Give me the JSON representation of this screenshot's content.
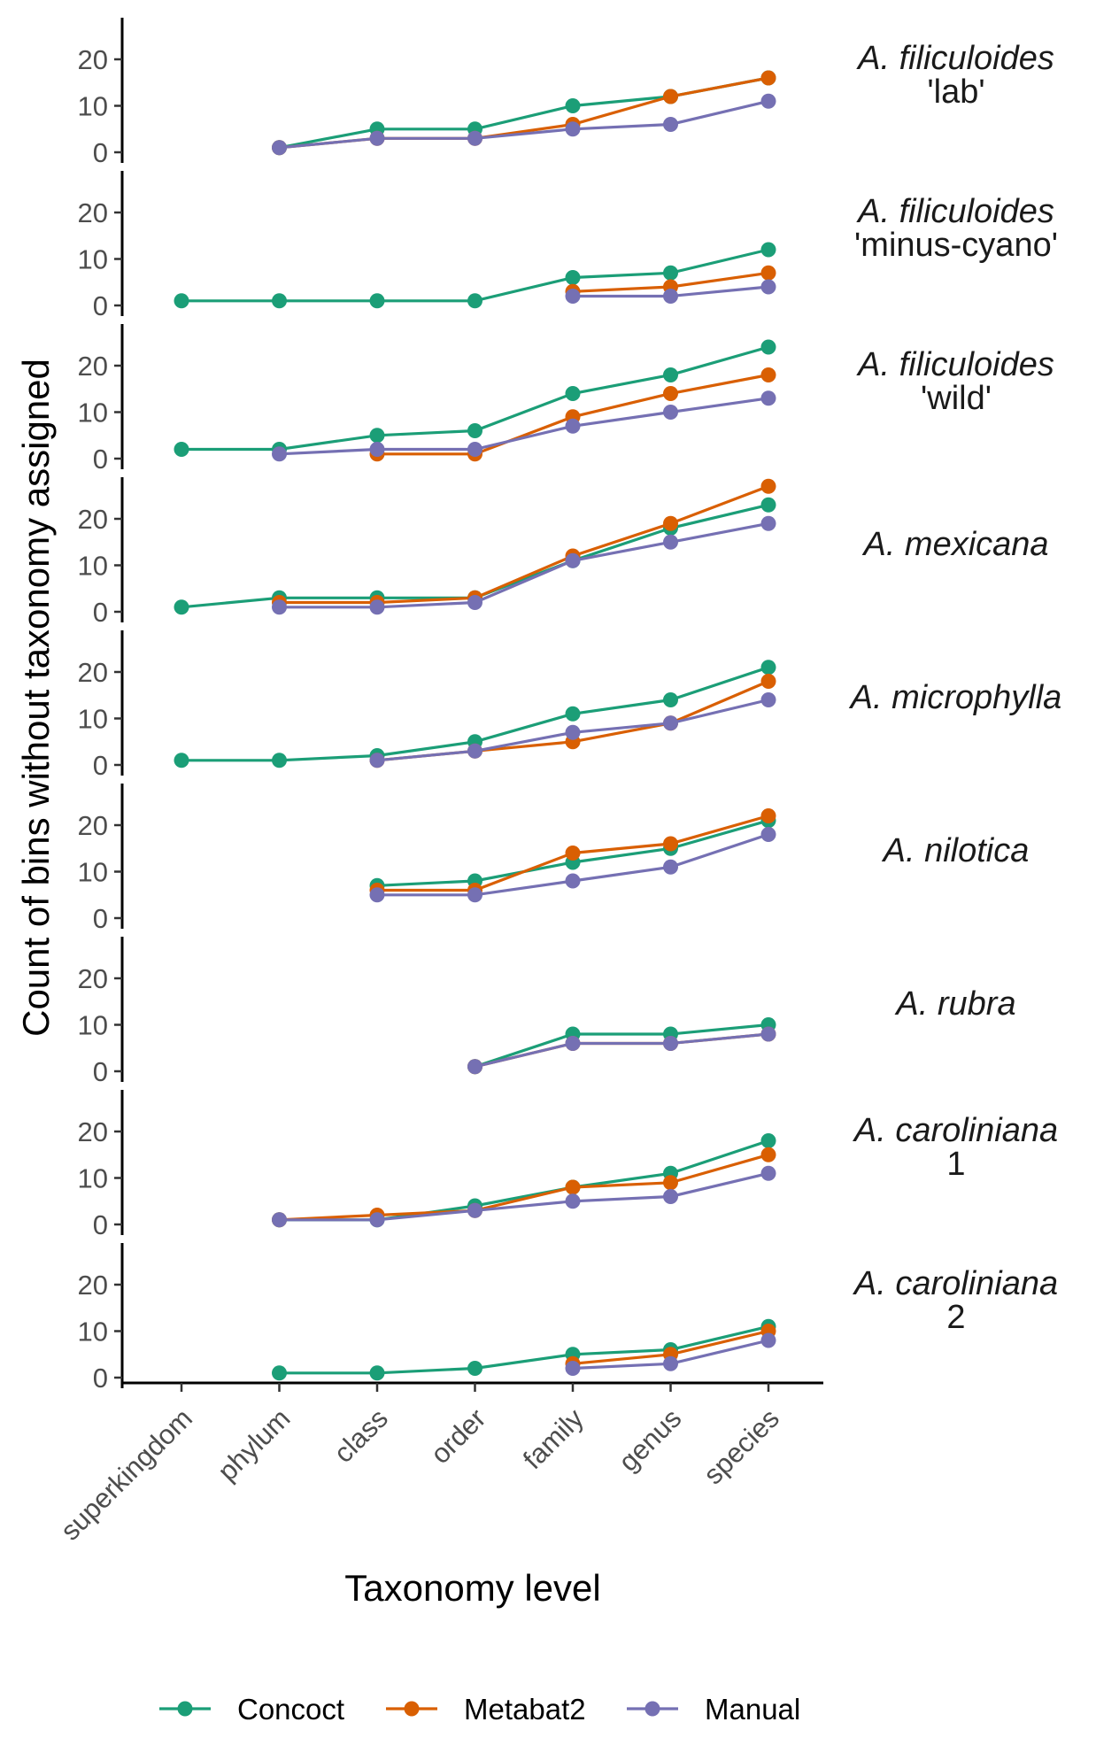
{
  "chart_data": {
    "type": "line",
    "ylabel": "Count of bins without taxonomy assigned",
    "xlabel": "Taxonomy level",
    "categories": [
      "superkingdom",
      "phylum",
      "class",
      "order",
      "family",
      "genus",
      "species"
    ],
    "ylim": [
      0,
      27
    ],
    "yticks": [
      0,
      10,
      20
    ],
    "legend_position": "bottom",
    "grid": false,
    "colors": {
      "Concoct": "#1b9e77",
      "Metabat2": "#d95f02",
      "Manual": "#7570b3"
    },
    "legend": [
      "Concoct",
      "Metabat2",
      "Manual"
    ],
    "facets": [
      {
        "label_lines": [
          {
            "text": "A. filiculoides",
            "italic": true
          },
          {
            "text": "'lab'",
            "italic": false
          }
        ],
        "series": [
          {
            "name": "Concoct",
            "values": [
              null,
              1,
              5,
              5,
              10,
              12,
              16
            ]
          },
          {
            "name": "Metabat2",
            "values": [
              null,
              1,
              3,
              3,
              6,
              12,
              16
            ]
          },
          {
            "name": "Manual",
            "values": [
              null,
              1,
              3,
              3,
              5,
              6,
              11
            ]
          }
        ]
      },
      {
        "label_lines": [
          {
            "text": "A. filiculoides",
            "italic": true
          },
          {
            "text": "'minus-cyano'",
            "italic": false
          }
        ],
        "series": [
          {
            "name": "Concoct",
            "values": [
              1,
              1,
              1,
              1,
              6,
              7,
              12
            ]
          },
          {
            "name": "Metabat2",
            "values": [
              null,
              null,
              null,
              null,
              3,
              4,
              7
            ]
          },
          {
            "name": "Manual",
            "values": [
              null,
              null,
              null,
              null,
              2,
              2,
              4
            ]
          }
        ]
      },
      {
        "label_lines": [
          {
            "text": "A. filiculoides",
            "italic": true
          },
          {
            "text": "'wild'",
            "italic": false
          }
        ],
        "series": [
          {
            "name": "Concoct",
            "values": [
              2,
              2,
              5,
              6,
              14,
              18,
              24
            ]
          },
          {
            "name": "Metabat2",
            "values": [
              null,
              null,
              1,
              1,
              9,
              14,
              18
            ]
          },
          {
            "name": "Manual",
            "values": [
              null,
              1,
              2,
              2,
              7,
              10,
              13
            ]
          }
        ]
      },
      {
        "label_lines": [
          {
            "text": "A. mexicana",
            "italic": true
          }
        ],
        "series": [
          {
            "name": "Concoct",
            "values": [
              1,
              3,
              3,
              3,
              11,
              18,
              23
            ]
          },
          {
            "name": "Metabat2",
            "values": [
              null,
              2,
              2,
              3,
              12,
              19,
              27
            ]
          },
          {
            "name": "Manual",
            "values": [
              null,
              1,
              1,
              2,
              11,
              15,
              19
            ]
          }
        ]
      },
      {
        "label_lines": [
          {
            "text": "A. microphylla",
            "italic": true
          }
        ],
        "series": [
          {
            "name": "Concoct",
            "values": [
              1,
              1,
              2,
              5,
              11,
              14,
              21
            ]
          },
          {
            "name": "Metabat2",
            "values": [
              null,
              null,
              1,
              3,
              5,
              9,
              18
            ]
          },
          {
            "name": "Manual",
            "values": [
              null,
              null,
              1,
              3,
              7,
              9,
              14
            ]
          }
        ]
      },
      {
        "label_lines": [
          {
            "text": "A. nilotica",
            "italic": true
          }
        ],
        "series": [
          {
            "name": "Concoct",
            "values": [
              null,
              null,
              7,
              8,
              12,
              15,
              21
            ]
          },
          {
            "name": "Metabat2",
            "values": [
              null,
              null,
              6,
              6,
              14,
              16,
              22
            ]
          },
          {
            "name": "Manual",
            "values": [
              null,
              null,
              5,
              5,
              8,
              11,
              18
            ]
          }
        ]
      },
      {
        "label_lines": [
          {
            "text": "A. rubra",
            "italic": true
          }
        ],
        "series": [
          {
            "name": "Concoct",
            "values": [
              null,
              null,
              null,
              1,
              8,
              8,
              10
            ]
          },
          {
            "name": "Metabat2",
            "values": [
              null,
              null,
              null,
              1,
              6,
              6,
              8
            ]
          },
          {
            "name": "Manual",
            "values": [
              null,
              null,
              null,
              1,
              6,
              6,
              8
            ]
          }
        ]
      },
      {
        "label_lines": [
          {
            "text": "A. caroliniana",
            "italic": true
          },
          {
            "text": "1",
            "italic": false
          }
        ],
        "series": [
          {
            "name": "Concoct",
            "values": [
              null,
              1,
              1,
              4,
              8,
              11,
              18
            ]
          },
          {
            "name": "Metabat2",
            "values": [
              null,
              1,
              2,
              3,
              8,
              9,
              15
            ]
          },
          {
            "name": "Manual",
            "values": [
              null,
              1,
              1,
              3,
              5,
              6,
              11
            ]
          }
        ]
      },
      {
        "label_lines": [
          {
            "text": "A. caroliniana",
            "italic": true
          },
          {
            "text": "2",
            "italic": false
          }
        ],
        "series": [
          {
            "name": "Concoct",
            "values": [
              null,
              1,
              1,
              2,
              5,
              6,
              11
            ]
          },
          {
            "name": "Metabat2",
            "values": [
              null,
              null,
              null,
              null,
              3,
              5,
              10
            ]
          },
          {
            "name": "Manual",
            "values": [
              null,
              null,
              null,
              null,
              2,
              3,
              8
            ]
          }
        ]
      }
    ]
  }
}
